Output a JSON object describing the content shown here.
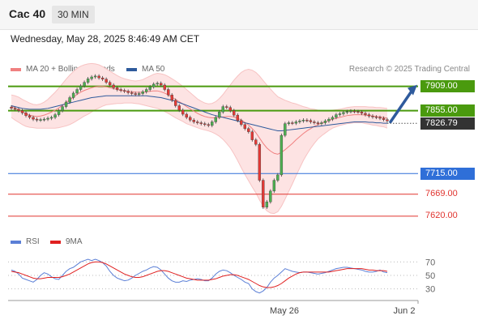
{
  "header": {
    "title": "Cac 40",
    "timeframe": "30 MIN"
  },
  "datetime": "Wednesday, May 28, 2025 8:46:49 AM CET",
  "legend": {
    "items": [
      {
        "label": "MA 20 + Bollinger Bands",
        "color": "#f08080"
      },
      {
        "label": "MA 50",
        "color": "#2e5a9c"
      }
    ],
    "copyright": "Research © 2025 Trading Central"
  },
  "rsi_legend": {
    "items": [
      {
        "label": "RSI",
        "color": "#5b7fd6"
      },
      {
        "label": "9MA",
        "color": "#e02020"
      }
    ]
  },
  "colors": {
    "green_level": "#4a9a0e",
    "blue_level": "#2f6fd8",
    "red_level": "#e0342f",
    "current": "#333333",
    "arrow": "#2e5a9c"
  },
  "chart_data": [
    {
      "type": "candlestick",
      "ylim": [
        7600,
        7930
      ],
      "xticks": [
        "May 26",
        "Jun 2"
      ],
      "levels": [
        {
          "label": "7909.00",
          "value": 7909,
          "kind": "resistance",
          "color": "#4a9a0e"
        },
        {
          "label": "7855.00",
          "value": 7855,
          "kind": "pivot",
          "color": "#4a9a0e"
        },
        {
          "label": "7826.79",
          "value": 7826.79,
          "kind": "current",
          "color": "#333333"
        },
        {
          "label": "7715.00",
          "value": 7715,
          "kind": "support",
          "color": "#2f6fd8"
        },
        {
          "label": "7669.00",
          "value": 7669,
          "kind": "support",
          "color": "#e0342f"
        },
        {
          "label": "7620.00",
          "value": 7620,
          "kind": "support",
          "color": "#e0342f"
        }
      ],
      "close": [
        7860,
        7858,
        7855,
        7850,
        7844,
        7840,
        7836,
        7834,
        7835,
        7836,
        7838,
        7840,
        7846,
        7855,
        7864,
        7874,
        7884,
        7894,
        7902,
        7910,
        7918,
        7926,
        7930,
        7932,
        7928,
        7925,
        7918,
        7912,
        7906,
        7902,
        7900,
        7898,
        7895,
        7893,
        7891,
        7893,
        7897,
        7902,
        7908,
        7914,
        7916,
        7912,
        7902,
        7890,
        7878,
        7866,
        7856,
        7847,
        7840,
        7834,
        7830,
        7828,
        7826,
        7824,
        7822,
        7830,
        7840,
        7852,
        7864,
        7862,
        7855,
        7845,
        7833,
        7824,
        7815,
        7808,
        7790,
        7780,
        7700,
        7640,
        7652,
        7676,
        7700,
        7712,
        7800,
        7826,
        7828,
        7827,
        7830,
        7832,
        7834,
        7833,
        7830,
        7828,
        7826,
        7828,
        7832,
        7836,
        7840,
        7846,
        7848,
        7851,
        7853,
        7854,
        7853,
        7852,
        7849,
        7846,
        7843,
        7841,
        7840,
        7838,
        7835,
        7832
      ],
      "ma20": [
        7865,
        7861,
        7857,
        7852,
        7848,
        7845,
        7843,
        7842,
        7843,
        7845,
        7848,
        7852,
        7856,
        7861,
        7867,
        7873,
        7879,
        7885,
        7891,
        7896,
        7900,
        7903,
        7906,
        7908,
        7909,
        7909,
        7908,
        7906,
        7904,
        7902,
        7900,
        7899,
        7898,
        7897,
        7896,
        7896,
        7896,
        7897,
        7898,
        7899,
        7899,
        7897,
        7894,
        7890,
        7885,
        7880,
        7875,
        7870,
        7864,
        7859,
        7854,
        7849,
        7845,
        7842,
        7840,
        7839,
        7839,
        7840,
        7841,
        7842,
        7842,
        7841,
        7838,
        7834,
        7829,
        7823,
        7815,
        7806,
        7794,
        7782,
        7772,
        7765,
        7760,
        7758,
        7762,
        7768,
        7775,
        7782,
        7790,
        7797,
        7804,
        7810,
        7815,
        7820,
        7824,
        7827,
        7830,
        7833,
        7836,
        7838,
        7840,
        7842,
        7844,
        7845,
        7846,
        7846,
        7846,
        7845,
        7844,
        7843,
        7842,
        7841,
        7840,
        7838
      ],
      "ma50": [
        7866,
        7864,
        7862,
        7860,
        7859,
        7858,
        7858,
        7858,
        7858,
        7859,
        7860,
        7862,
        7864,
        7866,
        7868,
        7870,
        7872,
        7874,
        7876,
        7878,
        7880,
        7882,
        7884,
        7885,
        7886,
        7887,
        7888,
        7888,
        7888,
        7888,
        7888,
        7888,
        7888,
        7888,
        7888,
        7888,
        7888,
        7888,
        7887,
        7886,
        7885,
        7884,
        7882,
        7880,
        7878,
        7876,
        7873,
        7870,
        7867,
        7864,
        7861,
        7858,
        7855,
        7852,
        7849,
        7846,
        7844,
        7842,
        7840,
        7838,
        7836,
        7834,
        7832,
        7830,
        7828,
        7826,
        7824,
        7822,
        7820,
        7818,
        7816,
        7814,
        7812,
        7810,
        7810,
        7811,
        7812,
        7813,
        7814,
        7815,
        7816,
        7817,
        7818,
        7819,
        7820,
        7821,
        7822,
        7823,
        7824,
        7825,
        7826,
        7827,
        7828,
        7829,
        7830,
        7830,
        7830,
        7830,
        7829,
        7829,
        7828,
        7828,
        7827,
        7827
      ],
      "bb_width": [
        25,
        27,
        28,
        28,
        28,
        27,
        26,
        26,
        27,
        29,
        32,
        36,
        40,
        44,
        48,
        52,
        55,
        57,
        58,
        58,
        57,
        56,
        54,
        51,
        48,
        44,
        40,
        37,
        34,
        31,
        29,
        27,
        26,
        25,
        25,
        26,
        28,
        31,
        34,
        37,
        39,
        40,
        41,
        41,
        41,
        41,
        40,
        39,
        38,
        36,
        34,
        32,
        31,
        30,
        30,
        32,
        36,
        42,
        50,
        60,
        70,
        82,
        94,
        106,
        116,
        124,
        130,
        134,
        138,
        140,
        140,
        138,
        134,
        128,
        120,
        110,
        100,
        90,
        80,
        70,
        60,
        52,
        44,
        38,
        32,
        28,
        25,
        22,
        20,
        19,
        18,
        18,
        18,
        18,
        18,
        18,
        18,
        19,
        19,
        20,
        20,
        21,
        21,
        22
      ],
      "arrow": {
        "from_value": 7830,
        "to_value": 7909
      }
    },
    {
      "type": "line",
      "ylim": [
        20,
        80
      ],
      "yticks": [
        70,
        50,
        30
      ],
      "series": [
        {
          "name": "RSI",
          "color": "#5b7fd6",
          "values": [
            58,
            56,
            52,
            46,
            44,
            42,
            40,
            44,
            50,
            54,
            52,
            48,
            45,
            44,
            50,
            56,
            60,
            62,
            66,
            70,
            72,
            74,
            72,
            74,
            72,
            69,
            64,
            56,
            50,
            46,
            44,
            42,
            43,
            46,
            50,
            53,
            56,
            58,
            61,
            63,
            62,
            58,
            52,
            46,
            42,
            40,
            40,
            42,
            41,
            43,
            44,
            45,
            44,
            42,
            42,
            46,
            52,
            56,
            58,
            57,
            54,
            50,
            47,
            44,
            40,
            38,
            30,
            26,
            24,
            27,
            32,
            40,
            46,
            50,
            55,
            60,
            58,
            56,
            55,
            54,
            55,
            55,
            54,
            53,
            52,
            53,
            54,
            56,
            58,
            60,
            61,
            62,
            62,
            61,
            60,
            59,
            58,
            56,
            55,
            55,
            56,
            58,
            55,
            54
          ]
        },
        {
          "name": "9MA",
          "color": "#e02020",
          "values": [
            56,
            55,
            54,
            52,
            50,
            48,
            46,
            45,
            45,
            46,
            47,
            47,
            47,
            47,
            48,
            50,
            52,
            55,
            58,
            61,
            64,
            67,
            69,
            70,
            70,
            69,
            67,
            64,
            61,
            58,
            55,
            52,
            50,
            48,
            47,
            47,
            48,
            50,
            52,
            54,
            56,
            57,
            57,
            56,
            54,
            52,
            50,
            48,
            46,
            45,
            44,
            43,
            43,
            43,
            43,
            44,
            45,
            47,
            49,
            50,
            51,
            51,
            50,
            48,
            46,
            44,
            41,
            38,
            35,
            33,
            32,
            32,
            33,
            35,
            38,
            42,
            46,
            49,
            52,
            54,
            55,
            55,
            55,
            55,
            55,
            55,
            55,
            55,
            56,
            57,
            58,
            59,
            60,
            60,
            60,
            60,
            60,
            59,
            58,
            58,
            57,
            57,
            57,
            56
          ]
        }
      ]
    }
  ]
}
